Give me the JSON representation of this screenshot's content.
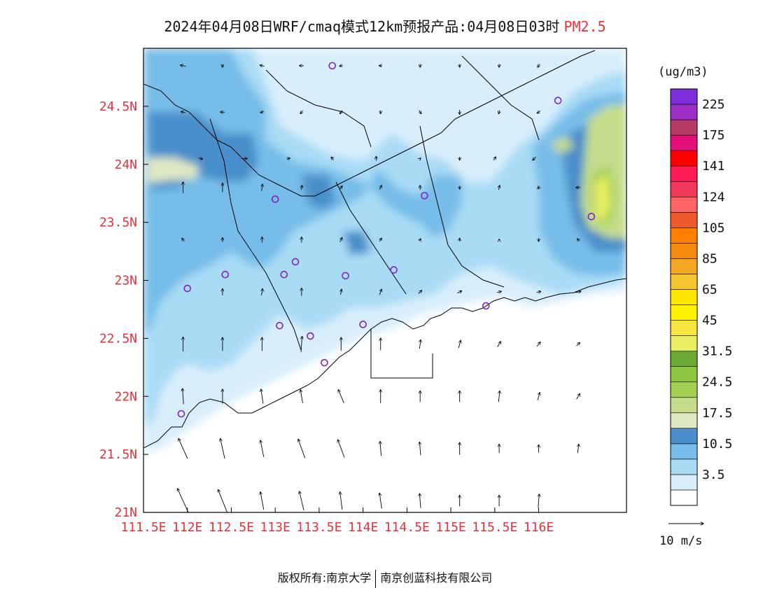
{
  "header": {
    "title": "2024年04月08日WRF/cmaq模式12km预报产品:04月08日03时",
    "species": "PM2.5"
  },
  "footer": {
    "left": "版权所有:南京大学",
    "right": "南京创蓝科技有限公司"
  },
  "colors": {
    "tick": "#e8323c",
    "coast": "#000000",
    "station": "#7b22c8"
  },
  "chart_data": {
    "type": "heatmap",
    "x_axis": {
      "ticks": [
        "111.5E",
        "112E",
        "112.5E",
        "113E",
        "113.5E",
        "114E",
        "114.5E",
        "115E",
        "115.5E",
        "116E"
      ],
      "range": [
        111.5,
        117.0
      ]
    },
    "y_axis": {
      "ticks": [
        "21N",
        "21.5N",
        "22N",
        "22.5N",
        "23N",
        "23.5N",
        "24N",
        "24.5N"
      ],
      "range": [
        21.0,
        25.0
      ]
    },
    "colorbar": {
      "unit": "(ug/m3)",
      "bins": [
        {
          "color": "#ffffff"
        },
        {
          "color": "#d8eefb",
          "label": "3.5"
        },
        {
          "color": "#a9dbf5"
        },
        {
          "color": "#77bde9",
          "label": "10.5"
        },
        {
          "color": "#4a8fcb"
        },
        {
          "color": "#dde8c2",
          "label": "17.5"
        },
        {
          "color": "#c4dd8c"
        },
        {
          "color": "#a2cf54",
          "label": "24.5"
        },
        {
          "color": "#8dc440"
        },
        {
          "color": "#6aa932",
          "label": "31.5"
        },
        {
          "color": "#eaee63"
        },
        {
          "color": "#f7e642",
          "label": "45"
        },
        {
          "color": "#fff200"
        },
        {
          "color": "#ffe600",
          "label": "65"
        },
        {
          "color": "#f5c531"
        },
        {
          "color": "#f5a623",
          "label": "85"
        },
        {
          "color": "#f58b0e"
        },
        {
          "color": "#ff8000",
          "label": "105"
        },
        {
          "color": "#ef5a2c"
        },
        {
          "color": "#ff6565",
          "label": "124"
        },
        {
          "color": "#f2385a"
        },
        {
          "color": "#ff1a55",
          "label": "141"
        },
        {
          "color": "#ff0000"
        },
        {
          "color": "#e3107a",
          "label": "175"
        },
        {
          "color": "#b33b66"
        },
        {
          "color": "#9c2ec4",
          "label": "225"
        },
        {
          "color": "#7d2ed8"
        }
      ]
    },
    "wind_reference": {
      "label": "10 m/s",
      "speed": 10
    },
    "wind_vectors": [
      {
        "lon": 111.95,
        "lat": 21.1,
        "u": -1.0,
        "v": 2.2
      },
      {
        "lon": 112.4,
        "lat": 21.1,
        "u": -0.8,
        "v": 2.0
      },
      {
        "lon": 112.85,
        "lat": 21.1,
        "u": -0.3,
        "v": 1.6
      },
      {
        "lon": 113.3,
        "lat": 21.1,
        "u": -0.4,
        "v": 1.7
      },
      {
        "lon": 113.75,
        "lat": 21.1,
        "u": -0.2,
        "v": 1.6
      },
      {
        "lon": 114.2,
        "lat": 21.1,
        "u": -0.2,
        "v": 1.4
      },
      {
        "lon": 114.65,
        "lat": 21.1,
        "u": -0.1,
        "v": 1.3
      },
      {
        "lon": 115.1,
        "lat": 21.1,
        "u": 0.0,
        "v": 1.0
      },
      {
        "lon": 115.55,
        "lat": 21.1,
        "u": 0.0,
        "v": 1.0
      },
      {
        "lon": 116.0,
        "lat": 21.1,
        "u": 0.1,
        "v": 1.2
      },
      {
        "lon": 111.95,
        "lat": 21.55,
        "u": -0.8,
        "v": 1.8
      },
      {
        "lon": 112.4,
        "lat": 21.55,
        "u": -0.4,
        "v": 1.8
      },
      {
        "lon": 112.85,
        "lat": 21.55,
        "u": -0.3,
        "v": 1.5
      },
      {
        "lon": 113.3,
        "lat": 21.55,
        "u": -0.6,
        "v": 1.7
      },
      {
        "lon": 113.75,
        "lat": 21.55,
        "u": -0.6,
        "v": 1.6
      },
      {
        "lon": 114.2,
        "lat": 21.55,
        "u": -0.1,
        "v": 1.3
      },
      {
        "lon": 114.65,
        "lat": 21.55,
        "u": -0.1,
        "v": 1.2
      },
      {
        "lon": 115.1,
        "lat": 21.55,
        "u": 0.0,
        "v": 1.1
      },
      {
        "lon": 115.55,
        "lat": 21.55,
        "u": 0.0,
        "v": 0.8
      },
      {
        "lon": 116.0,
        "lat": 21.55,
        "u": 0.0,
        "v": 0.7
      },
      {
        "lon": 116.45,
        "lat": 21.55,
        "u": 0.1,
        "v": 0.8
      },
      {
        "lon": 111.95,
        "lat": 22.0,
        "u": -0.1,
        "v": 1.4
      },
      {
        "lon": 112.4,
        "lat": 22.0,
        "u": 0.0,
        "v": 1.3
      },
      {
        "lon": 112.85,
        "lat": 22.0,
        "u": -0.2,
        "v": 1.3
      },
      {
        "lon": 113.3,
        "lat": 22.0,
        "u": -0.2,
        "v": 1.2
      },
      {
        "lon": 113.75,
        "lat": 22.0,
        "u": -0.5,
        "v": 1.2
      },
      {
        "lon": 114.2,
        "lat": 22.0,
        "u": 0.0,
        "v": 1.2
      },
      {
        "lon": 114.65,
        "lat": 22.0,
        "u": 0.0,
        "v": 1.0
      },
      {
        "lon": 115.1,
        "lat": 22.0,
        "u": 0.0,
        "v": 1.0
      },
      {
        "lon": 115.55,
        "lat": 22.0,
        "u": 0.1,
        "v": 1.0
      },
      {
        "lon": 116.0,
        "lat": 22.0,
        "u": 0.2,
        "v": 0.7
      },
      {
        "lon": 116.45,
        "lat": 22.0,
        "u": 0.3,
        "v": 0.5
      },
      {
        "lon": 111.95,
        "lat": 22.45,
        "u": 0.0,
        "v": 1.3
      },
      {
        "lon": 112.4,
        "lat": 22.45,
        "u": 0.0,
        "v": 1.2
      },
      {
        "lon": 112.85,
        "lat": 22.45,
        "u": 0.0,
        "v": 1.2
      },
      {
        "lon": 113.3,
        "lat": 22.45,
        "u": 0.1,
        "v": 1.4
      },
      {
        "lon": 113.75,
        "lat": 22.45,
        "u": 0.0,
        "v": 1.2
      },
      {
        "lon": 114.2,
        "lat": 22.45,
        "u": 0.0,
        "v": 1.1
      },
      {
        "lon": 114.65,
        "lat": 22.45,
        "u": 0.1,
        "v": 0.8
      },
      {
        "lon": 115.1,
        "lat": 22.45,
        "u": 0.2,
        "v": 0.7
      },
      {
        "lon": 115.55,
        "lat": 22.45,
        "u": 0.3,
        "v": 0.5
      },
      {
        "lon": 116.0,
        "lat": 22.45,
        "u": 0.3,
        "v": 0.4
      },
      {
        "lon": 116.45,
        "lat": 22.45,
        "u": 0.3,
        "v": 0.3
      },
      {
        "lon": 112.4,
        "lat": 22.9,
        "u": 0.0,
        "v": 0.6
      },
      {
        "lon": 112.85,
        "lat": 22.9,
        "u": 0.1,
        "v": 0.6
      },
      {
        "lon": 113.3,
        "lat": 22.9,
        "u": 0.0,
        "v": 0.7
      },
      {
        "lon": 113.75,
        "lat": 22.9,
        "u": 0.1,
        "v": 0.5
      },
      {
        "lon": 114.2,
        "lat": 22.9,
        "u": 0.2,
        "v": 0.5
      },
      {
        "lon": 114.65,
        "lat": 22.9,
        "u": 0.3,
        "v": 0.3
      },
      {
        "lon": 115.1,
        "lat": 22.9,
        "u": 0.4,
        "v": 0.2
      },
      {
        "lon": 115.55,
        "lat": 22.9,
        "u": 0.4,
        "v": 0.1
      },
      {
        "lon": 116.0,
        "lat": 22.9,
        "u": 0.4,
        "v": 0.1
      },
      {
        "lon": 116.45,
        "lat": 22.9,
        "u": 0.5,
        "v": 0.1
      },
      {
        "lon": 111.95,
        "lat": 23.35,
        "u": -0.2,
        "v": 0.3
      },
      {
        "lon": 112.4,
        "lat": 23.35,
        "u": 0.0,
        "v": 0.4
      },
      {
        "lon": 112.85,
        "lat": 23.35,
        "u": 0.0,
        "v": 0.5
      },
      {
        "lon": 113.3,
        "lat": 23.35,
        "u": 0.0,
        "v": 0.5
      },
      {
        "lon": 113.75,
        "lat": 23.35,
        "u": 0.2,
        "v": 0.4
      },
      {
        "lon": 114.2,
        "lat": 23.35,
        "u": 0.2,
        "v": 0.3
      },
      {
        "lon": 114.65,
        "lat": 23.35,
        "u": 0.1,
        "v": 0.2
      },
      {
        "lon": 115.1,
        "lat": 23.35,
        "u": 0.0,
        "v": 0.3
      },
      {
        "lon": 115.55,
        "lat": 23.35,
        "u": 0.0,
        "v": 0.1
      },
      {
        "lon": 116.0,
        "lat": 23.35,
        "u": 0.0,
        "v": -0.3
      },
      {
        "lon": 116.45,
        "lat": 23.35,
        "u": -0.2,
        "v": 0.2
      },
      {
        "lon": 111.95,
        "lat": 23.8,
        "u": 0.0,
        "v": 1.0
      },
      {
        "lon": 112.4,
        "lat": 23.8,
        "u": 0.0,
        "v": 0.8
      },
      {
        "lon": 112.85,
        "lat": 23.8,
        "u": 0.1,
        "v": 0.6
      },
      {
        "lon": 113.3,
        "lat": 23.8,
        "u": 0.1,
        "v": 0.4
      },
      {
        "lon": 113.75,
        "lat": 23.8,
        "u": 0.2,
        "v": 0.3
      },
      {
        "lon": 114.2,
        "lat": 23.8,
        "u": 0.2,
        "v": 0.4
      },
      {
        "lon": 114.65,
        "lat": 23.8,
        "u": 0.0,
        "v": 0.4
      },
      {
        "lon": 115.1,
        "lat": 23.8,
        "u": 0.0,
        "v": -0.3
      },
      {
        "lon": 115.55,
        "lat": 23.8,
        "u": 0.1,
        "v": 0.4
      },
      {
        "lon": 116.0,
        "lat": 23.8,
        "u": -0.2,
        "v": -0.2
      },
      {
        "lon": 116.45,
        "lat": 23.8,
        "u": -0.4,
        "v": 0.0
      },
      {
        "lon": 112.15,
        "lat": 24.05,
        "u": 0.4,
        "v": -0.1
      },
      {
        "lon": 112.65,
        "lat": 24.05,
        "u": 0.5,
        "v": 0.0
      },
      {
        "lon": 113.15,
        "lat": 24.05,
        "u": 0.3,
        "v": 0.1
      },
      {
        "lon": 113.65,
        "lat": 24.05,
        "u": -0.2,
        "v": 0.3
      },
      {
        "lon": 114.15,
        "lat": 24.05,
        "u": 0.0,
        "v": 0.4
      },
      {
        "lon": 114.65,
        "lat": 24.05,
        "u": 0.1,
        "v": 0.1
      },
      {
        "lon": 115.1,
        "lat": 24.05,
        "u": 0.0,
        "v": -0.3
      },
      {
        "lon": 115.5,
        "lat": 24.05,
        "u": 0.2,
        "v": 0.3
      },
      {
        "lon": 115.95,
        "lat": 24.05,
        "u": -0.3,
        "v": -0.3
      },
      {
        "lon": 111.95,
        "lat": 24.45,
        "u": -0.4,
        "v": 0.1
      },
      {
        "lon": 112.4,
        "lat": 24.45,
        "u": -0.4,
        "v": 0.0
      },
      {
        "lon": 112.85,
        "lat": 24.45,
        "u": -0.3,
        "v": -0.1
      },
      {
        "lon": 113.3,
        "lat": 24.45,
        "u": -0.2,
        "v": -0.3
      },
      {
        "lon": 113.75,
        "lat": 24.45,
        "u": -0.2,
        "v": -0.3
      },
      {
        "lon": 114.2,
        "lat": 24.45,
        "u": 0.0,
        "v": -0.3
      },
      {
        "lon": 114.65,
        "lat": 24.45,
        "u": 0.2,
        "v": -0.3
      },
      {
        "lon": 115.1,
        "lat": 24.45,
        "u": 0.0,
        "v": -0.4
      },
      {
        "lon": 115.55,
        "lat": 24.45,
        "u": -0.1,
        "v": -0.3
      },
      {
        "lon": 116.0,
        "lat": 24.45,
        "u": -0.3,
        "v": -0.2
      },
      {
        "lon": 111.95,
        "lat": 24.85,
        "u": -0.5,
        "v": 0.1
      },
      {
        "lon": 112.4,
        "lat": 24.85,
        "u": 0.0,
        "v": -0.3
      },
      {
        "lon": 112.85,
        "lat": 24.85,
        "u": -0.4,
        "v": 0.1
      },
      {
        "lon": 113.3,
        "lat": 24.85,
        "u": -0.4,
        "v": 0.0
      },
      {
        "lon": 113.75,
        "lat": 24.85,
        "u": -0.3,
        "v": -0.1
      },
      {
        "lon": 114.2,
        "lat": 24.85,
        "u": -0.3,
        "v": 0.0
      },
      {
        "lon": 114.65,
        "lat": 24.85,
        "u": 0.0,
        "v": -0.3
      },
      {
        "lon": 115.1,
        "lat": 24.85,
        "u": 0.0,
        "v": -0.3
      },
      {
        "lon": 115.55,
        "lat": 24.85,
        "u": 0.0,
        "v": -0.3
      },
      {
        "lon": 116.0,
        "lat": 24.85,
        "u": -0.2,
        "v": -0.3
      }
    ],
    "stations": [
      {
        "lon": 113.65,
        "lat": 24.85
      },
      {
        "lon": 116.22,
        "lat": 24.55
      },
      {
        "lon": 113.0,
        "lat": 23.7
      },
      {
        "lon": 114.7,
        "lat": 23.73
      },
      {
        "lon": 116.6,
        "lat": 23.55
      },
      {
        "lon": 112.43,
        "lat": 23.05
      },
      {
        "lon": 112.0,
        "lat": 22.93
      },
      {
        "lon": 113.1,
        "lat": 23.05
      },
      {
        "lon": 113.23,
        "lat": 23.16
      },
      {
        "lon": 113.8,
        "lat": 23.04
      },
      {
        "lon": 114.35,
        "lat": 23.09
      },
      {
        "lon": 115.4,
        "lat": 22.78
      },
      {
        "lon": 113.05,
        "lat": 22.61
      },
      {
        "lon": 114.0,
        "lat": 22.62
      },
      {
        "lon": 113.4,
        "lat": 22.52
      },
      {
        "lon": 113.56,
        "lat": 22.29
      },
      {
        "lon": 111.93,
        "lat": 21.85
      }
    ]
  }
}
